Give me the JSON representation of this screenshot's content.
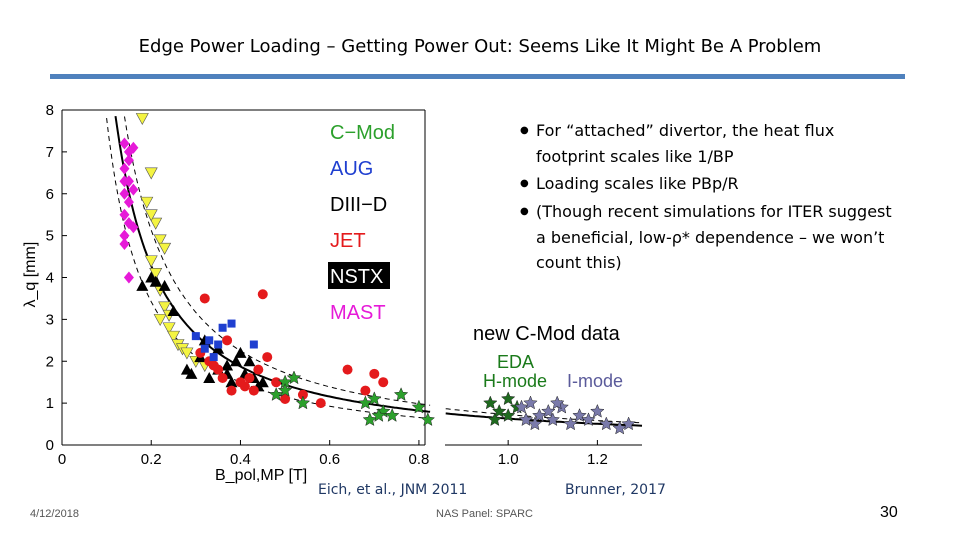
{
  "slide": {
    "title": "Edge Power Loading – Getting  Power Out:  Seems Like It Might Be A Problem",
    "bullets": [
      "For “attached” divertor, the heat flux footprint scales like 1/BP",
      "Loading scales like PBp/R",
      "(Though recent simulations for ITER suggest a beneficial, low-ρ* dependence – we won’t count this)"
    ],
    "citation_left": "Eich, et al., JNM 2011",
    "citation_right": "Brunner, 2017",
    "footer_date": "4/12/2018",
    "footer_center": "NAS Panel: SPARC",
    "page_number": "30",
    "accent_color": "#4f81bd"
  },
  "chart_data": {
    "type": "scatter",
    "xlabel": "B_pol,MP [T]",
    "ylabel": "λ_q [mm]",
    "xlim": [
      0,
      1.3
    ],
    "ylim": [
      0,
      8
    ],
    "x_ticks": [
      "0",
      "0.2",
      "0.4",
      "0.6",
      "0.8",
      "1.0",
      "1.2"
    ],
    "y_ticks": [
      "0",
      "1",
      "2",
      "3",
      "4",
      "5",
      "6",
      "7",
      "8"
    ],
    "legend": [
      {
        "label": "C−Mod",
        "color": "#2ca02c"
      },
      {
        "label": "AUG",
        "color": "#1f3fd0"
      },
      {
        "label": "DIII−D",
        "color": "#000000"
      },
      {
        "label": "JET",
        "color": "#e41a1c"
      },
      {
        "label": "NSTX",
        "color": "#ffffff",
        "background": "#000000"
      },
      {
        "label": "MAST",
        "color": "#e61ad8"
      }
    ],
    "inset_title": "new C-Mod data",
    "inset_labels": [
      {
        "label": "EDA",
        "color": "#1a7a1a"
      },
      {
        "label": "H-mode",
        "color": "#1a7a1a"
      },
      {
        "label": "I-mode",
        "color": "#5a5a9a"
      }
    ],
    "fit": {
      "type": "power",
      "coefficient": 0.63,
      "exponent": -1.19
    },
    "series": [
      {
        "name": "MAST",
        "marker": "diamond",
        "color": "#e61ad8",
        "points": [
          [
            0.14,
            7.2
          ],
          [
            0.15,
            7.0
          ],
          [
            0.14,
            6.6
          ],
          [
            0.15,
            6.3
          ],
          [
            0.14,
            6.0
          ],
          [
            0.15,
            5.8
          ],
          [
            0.14,
            5.5
          ],
          [
            0.15,
            5.3
          ],
          [
            0.14,
            5.0
          ],
          [
            0.16,
            5.2
          ],
          [
            0.15,
            6.8
          ],
          [
            0.14,
            4.8
          ],
          [
            0.15,
            4.0
          ],
          [
            0.16,
            6.1
          ],
          [
            0.14,
            6.3
          ],
          [
            0.16,
            7.1
          ]
        ]
      },
      {
        "name": "NSTX",
        "marker": "triangle-down",
        "color": "#f4f442",
        "points": [
          [
            0.18,
            7.8
          ],
          [
            0.2,
            6.5
          ],
          [
            0.19,
            5.8
          ],
          [
            0.21,
            5.3
          ],
          [
            0.22,
            4.9
          ],
          [
            0.2,
            4.4
          ],
          [
            0.21,
            4.1
          ],
          [
            0.22,
            3.7
          ],
          [
            0.23,
            3.3
          ],
          [
            0.22,
            3.0
          ],
          [
            0.24,
            2.8
          ],
          [
            0.25,
            2.6
          ],
          [
            0.26,
            2.4
          ],
          [
            0.27,
            2.3
          ],
          [
            0.28,
            2.2
          ],
          [
            0.3,
            2.0
          ],
          [
            0.32,
            1.9
          ],
          [
            0.2,
            5.5
          ],
          [
            0.23,
            4.7
          ],
          [
            0.24,
            3.1
          ]
        ]
      },
      {
        "name": "DIII-D",
        "marker": "triangle",
        "color": "#000000",
        "points": [
          [
            0.18,
            3.8
          ],
          [
            0.2,
            4.0
          ],
          [
            0.21,
            3.9
          ],
          [
            0.23,
            3.8
          ],
          [
            0.25,
            3.2
          ],
          [
            0.28,
            1.8
          ],
          [
            0.31,
            2.1
          ],
          [
            0.33,
            1.6
          ],
          [
            0.35,
            1.8
          ],
          [
            0.37,
            1.7
          ],
          [
            0.38,
            1.5
          ],
          [
            0.39,
            2.0
          ],
          [
            0.4,
            2.2
          ],
          [
            0.41,
            1.7
          ],
          [
            0.42,
            2.0
          ],
          [
            0.43,
            1.6
          ],
          [
            0.44,
            1.4
          ],
          [
            0.45,
            1.5
          ],
          [
            0.37,
            1.9
          ],
          [
            0.35,
            2.3
          ],
          [
            0.32,
            2.5
          ],
          [
            0.29,
            1.7
          ]
        ]
      },
      {
        "name": "JET",
        "marker": "circle",
        "color": "#e41a1c",
        "points": [
          [
            0.32,
            3.5
          ],
          [
            0.33,
            2.0
          ],
          [
            0.34,
            1.9
          ],
          [
            0.36,
            1.6
          ],
          [
            0.37,
            2.5
          ],
          [
            0.38,
            1.3
          ],
          [
            0.4,
            1.5
          ],
          [
            0.41,
            1.4
          ],
          [
            0.42,
            1.6
          ],
          [
            0.44,
            1.8
          ],
          [
            0.46,
            2.1
          ],
          [
            0.48,
            1.5
          ],
          [
            0.5,
            1.1
          ],
          [
            0.54,
            1.2
          ],
          [
            0.58,
            1.0
          ],
          [
            0.64,
            1.8
          ],
          [
            0.68,
            1.3
          ],
          [
            0.7,
            1.7
          ],
          [
            0.72,
            1.5
          ],
          [
            0.35,
            1.8
          ],
          [
            0.31,
            2.2
          ],
          [
            0.45,
            3.6
          ],
          [
            0.43,
            1.3
          ]
        ]
      },
      {
        "name": "AUG",
        "marker": "square",
        "color": "#1f3fd0",
        "points": [
          [
            0.32,
            2.3
          ],
          [
            0.33,
            2.5
          ],
          [
            0.35,
            2.4
          ],
          [
            0.36,
            2.8
          ],
          [
            0.34,
            2.1
          ],
          [
            0.38,
            2.9
          ],
          [
            0.43,
            2.4
          ],
          [
            0.3,
            2.6
          ]
        ]
      },
      {
        "name": "C-Mod",
        "marker": "star",
        "color": "#2ca02c",
        "points": [
          [
            0.5,
            1.5
          ],
          [
            0.52,
            1.6
          ],
          [
            0.5,
            1.3
          ],
          [
            0.48,
            1.2
          ],
          [
            0.54,
            1.0
          ],
          [
            0.68,
            1.0
          ],
          [
            0.7,
            1.1
          ],
          [
            0.72,
            0.8
          ],
          [
            0.74,
            0.7
          ],
          [
            0.76,
            1.2
          ],
          [
            0.8,
            0.9
          ],
          [
            0.82,
            0.6
          ],
          [
            0.69,
            0.6
          ],
          [
            0.71,
            0.7
          ]
        ]
      },
      {
        "name": "EDA H-mode",
        "marker": "star",
        "color": "#1f6a1f",
        "points": [
          [
            0.96,
            1.0
          ],
          [
            0.98,
            0.8
          ],
          [
            1.0,
            1.1
          ],
          [
            1.02,
            0.9
          ],
          [
            1.0,
            0.7
          ],
          [
            0.97,
            0.6
          ]
        ]
      },
      {
        "name": "I-mode",
        "marker": "star",
        "color": "#7a7aaa",
        "points": [
          [
            1.03,
            0.9
          ],
          [
            1.05,
            1.0
          ],
          [
            1.07,
            0.7
          ],
          [
            1.09,
            0.8
          ],
          [
            1.1,
            0.6
          ],
          [
            1.12,
            0.9
          ],
          [
            1.14,
            0.5
          ],
          [
            1.16,
            0.7
          ],
          [
            1.18,
            0.6
          ],
          [
            1.2,
            0.8
          ],
          [
            1.22,
            0.5
          ],
          [
            1.25,
            0.4
          ],
          [
            1.27,
            0.5
          ],
          [
            1.06,
            0.5
          ],
          [
            1.04,
            0.6
          ],
          [
            1.11,
            1.0
          ]
        ]
      }
    ]
  }
}
